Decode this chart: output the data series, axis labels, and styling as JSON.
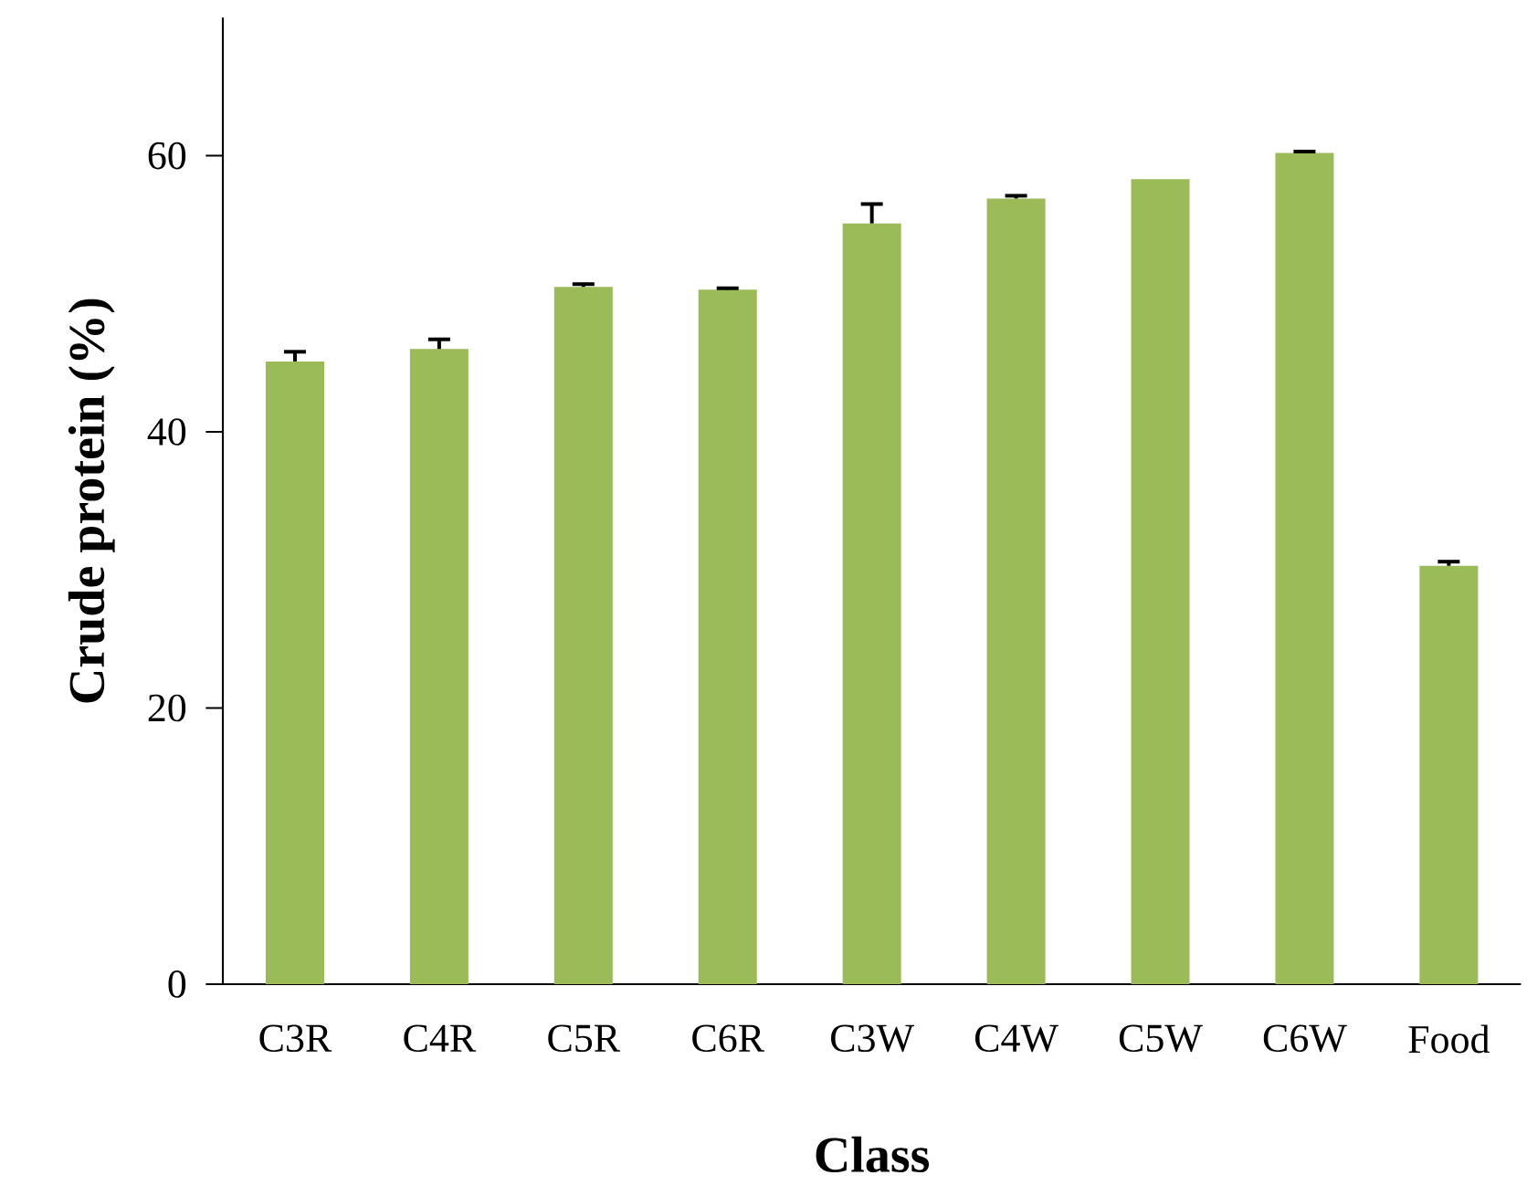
{
  "chart_data": {
    "type": "bar",
    "xlabel": "Class",
    "ylabel": "Crude protein (%)",
    "categories": [
      "C3R",
      "C4R",
      "C5R",
      "C6R",
      "C3W",
      "C4W",
      "C5W",
      "C6W",
      "Food"
    ],
    "values": [
      45.1,
      46.0,
      50.5,
      50.3,
      55.1,
      56.9,
      58.3,
      60.2,
      30.3
    ],
    "errors": [
      0.7,
      0.7,
      0.2,
      0.1,
      1.4,
      0.2,
      null,
      0.1,
      0.3
    ],
    "color": "#9bbb59",
    "ylim": [
      0,
      70
    ],
    "yticks": [
      0,
      20,
      40,
      60
    ]
  }
}
